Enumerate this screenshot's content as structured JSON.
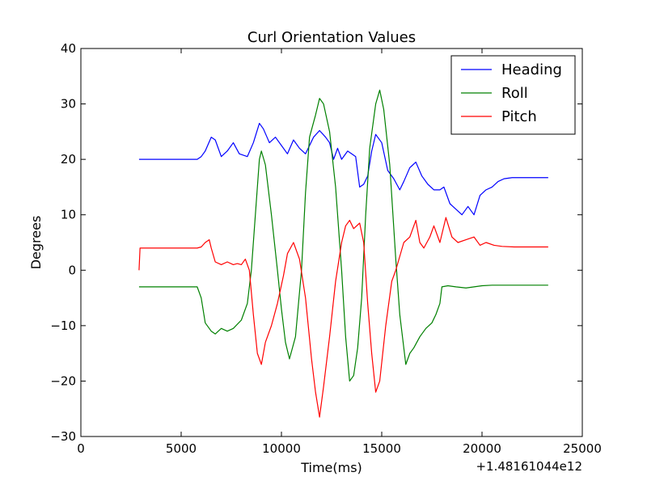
{
  "chart_data": {
    "type": "line",
    "title": "Curl Orientation Values",
    "xlabel": "Time(ms)",
    "ylabel": "Degrees",
    "x_offset_label": "+1.48161044e12",
    "xlim": [
      0,
      25000
    ],
    "ylim": [
      -30,
      40
    ],
    "x_ticks": [
      0,
      5000,
      10000,
      15000,
      20000,
      25000
    ],
    "x_tick_labels": [
      "0",
      "5000",
      "10000",
      "15000",
      "20000",
      "25000"
    ],
    "y_ticks": [
      -30,
      -20,
      -10,
      0,
      10,
      20,
      30,
      40
    ],
    "y_tick_labels": [
      "−30",
      "−20",
      "−10",
      "0",
      "10",
      "20",
      "30",
      "40"
    ],
    "grid": false,
    "legend_position": "top-right",
    "series": [
      {
        "name": "Heading",
        "color": "#0000ff",
        "points": [
          [
            2900,
            20
          ],
          [
            5800,
            20
          ],
          [
            6000,
            20.5
          ],
          [
            6200,
            21.5
          ],
          [
            6500,
            24
          ],
          [
            6700,
            23.5
          ],
          [
            7000,
            20.5
          ],
          [
            7300,
            21.5
          ],
          [
            7600,
            23
          ],
          [
            7900,
            21
          ],
          [
            8300,
            20.5
          ],
          [
            8600,
            23
          ],
          [
            8900,
            26.5
          ],
          [
            9100,
            25.5
          ],
          [
            9400,
            23
          ],
          [
            9700,
            24
          ],
          [
            10000,
            22.5
          ],
          [
            10300,
            21
          ],
          [
            10600,
            23.5
          ],
          [
            10900,
            22
          ],
          [
            11200,
            21
          ],
          [
            11600,
            24
          ],
          [
            11900,
            25.2
          ],
          [
            12200,
            24
          ],
          [
            12400,
            23
          ],
          [
            12600,
            20
          ],
          [
            12800,
            22
          ],
          [
            13000,
            20
          ],
          [
            13300,
            21.5
          ],
          [
            13500,
            21
          ],
          [
            13700,
            20.5
          ],
          [
            13900,
            15
          ],
          [
            14100,
            15.5
          ],
          [
            14300,
            17
          ],
          [
            14500,
            21.5
          ],
          [
            14700,
            24.5
          ],
          [
            15000,
            23
          ],
          [
            15300,
            18
          ],
          [
            15600,
            16.5
          ],
          [
            15900,
            14.5
          ],
          [
            16100,
            16
          ],
          [
            16400,
            18.5
          ],
          [
            16700,
            19.5
          ],
          [
            17000,
            17
          ],
          [
            17300,
            15.5
          ],
          [
            17600,
            14.5
          ],
          [
            17900,
            14.5
          ],
          [
            18100,
            15
          ],
          [
            18400,
            12
          ],
          [
            18700,
            11
          ],
          [
            19000,
            10
          ],
          [
            19300,
            11.5
          ],
          [
            19600,
            10
          ],
          [
            19900,
            13.5
          ],
          [
            20200,
            14.5
          ],
          [
            20500,
            15
          ],
          [
            20800,
            16
          ],
          [
            21100,
            16.5
          ],
          [
            21500,
            16.7
          ],
          [
            22000,
            16.7
          ],
          [
            23300,
            16.7
          ]
        ]
      },
      {
        "name": "Roll",
        "color": "#008000",
        "points": [
          [
            2900,
            -3
          ],
          [
            5800,
            -3
          ],
          [
            6000,
            -5
          ],
          [
            6200,
            -9.5
          ],
          [
            6500,
            -11
          ],
          [
            6700,
            -11.5
          ],
          [
            7000,
            -10.5
          ],
          [
            7300,
            -11
          ],
          [
            7600,
            -10.5
          ],
          [
            8000,
            -9
          ],
          [
            8300,
            -6
          ],
          [
            8500,
            0
          ],
          [
            8700,
            10
          ],
          [
            8900,
            20
          ],
          [
            9000,
            21.5
          ],
          [
            9200,
            19
          ],
          [
            9500,
            10
          ],
          [
            9800,
            0
          ],
          [
            10000,
            -7
          ],
          [
            10200,
            -13
          ],
          [
            10400,
            -16
          ],
          [
            10700,
            -12
          ],
          [
            11000,
            0
          ],
          [
            11200,
            14
          ],
          [
            11400,
            24
          ],
          [
            11700,
            28
          ],
          [
            11900,
            31
          ],
          [
            12100,
            30
          ],
          [
            12400,
            25
          ],
          [
            12700,
            15
          ],
          [
            13000,
            0
          ],
          [
            13200,
            -12
          ],
          [
            13400,
            -20
          ],
          [
            13600,
            -19
          ],
          [
            13800,
            -14
          ],
          [
            14000,
            -5
          ],
          [
            14200,
            10
          ],
          [
            14400,
            22
          ],
          [
            14700,
            30
          ],
          [
            14900,
            32.5
          ],
          [
            15100,
            29
          ],
          [
            15400,
            19
          ],
          [
            15700,
            2
          ],
          [
            15900,
            -8
          ],
          [
            16200,
            -17
          ],
          [
            16400,
            -15
          ],
          [
            16600,
            -14
          ],
          [
            16900,
            -12
          ],
          [
            17200,
            -10.5
          ],
          [
            17500,
            -9.5
          ],
          [
            17700,
            -8
          ],
          [
            17900,
            -6
          ],
          [
            18000,
            -3
          ],
          [
            18300,
            -2.8
          ],
          [
            18700,
            -3
          ],
          [
            19200,
            -3.2
          ],
          [
            19600,
            -3
          ],
          [
            20000,
            -2.8
          ],
          [
            20500,
            -2.7
          ],
          [
            23300,
            -2.7
          ]
        ]
      },
      {
        "name": "Pitch",
        "color": "#ff0000",
        "points": [
          [
            2900,
            0
          ],
          [
            2950,
            4
          ],
          [
            5800,
            4
          ],
          [
            6000,
            4.2
          ],
          [
            6200,
            5
          ],
          [
            6400,
            5.5
          ],
          [
            6500,
            4
          ],
          [
            6700,
            1.5
          ],
          [
            7000,
            1
          ],
          [
            7300,
            1.5
          ],
          [
            7600,
            1
          ],
          [
            7800,
            1.2
          ],
          [
            8000,
            1
          ],
          [
            8200,
            2
          ],
          [
            8400,
            0
          ],
          [
            8600,
            -8
          ],
          [
            8800,
            -15
          ],
          [
            9000,
            -17
          ],
          [
            9200,
            -13
          ],
          [
            9500,
            -10
          ],
          [
            9800,
            -6
          ],
          [
            10100,
            -1
          ],
          [
            10300,
            3
          ],
          [
            10600,
            5
          ],
          [
            10900,
            2
          ],
          [
            11200,
            -5
          ],
          [
            11500,
            -16
          ],
          [
            11700,
            -22
          ],
          [
            11900,
            -26.5
          ],
          [
            12100,
            -21
          ],
          [
            12400,
            -12
          ],
          [
            12700,
            -2
          ],
          [
            13000,
            5
          ],
          [
            13200,
            8
          ],
          [
            13400,
            9
          ],
          [
            13600,
            7.5
          ],
          [
            13900,
            8.5
          ],
          [
            14100,
            5
          ],
          [
            14300,
            -6
          ],
          [
            14500,
            -15
          ],
          [
            14700,
            -22
          ],
          [
            14900,
            -20
          ],
          [
            15200,
            -10
          ],
          [
            15500,
            -2
          ],
          [
            15700,
            0
          ],
          [
            15900,
            2.5
          ],
          [
            16100,
            5
          ],
          [
            16400,
            6
          ],
          [
            16700,
            9
          ],
          [
            16900,
            5
          ],
          [
            17100,
            4
          ],
          [
            17400,
            6
          ],
          [
            17600,
            8
          ],
          [
            17900,
            5
          ],
          [
            18200,
            9.5
          ],
          [
            18500,
            6
          ],
          [
            18800,
            5
          ],
          [
            19200,
            5.5
          ],
          [
            19600,
            6
          ],
          [
            19900,
            4.5
          ],
          [
            20200,
            5
          ],
          [
            20600,
            4.5
          ],
          [
            21000,
            4.3
          ],
          [
            21600,
            4.2
          ],
          [
            23300,
            4.2
          ]
        ]
      }
    ]
  }
}
